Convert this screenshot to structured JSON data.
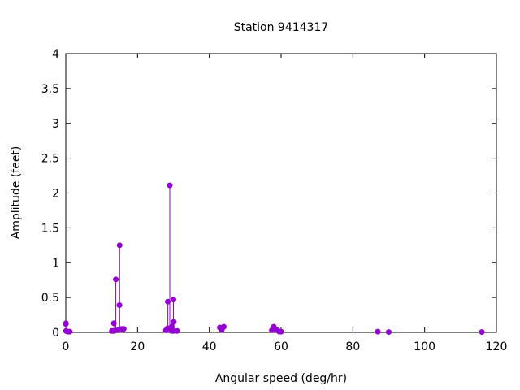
{
  "chart_data": {
    "type": "scatter",
    "style": "impulses-with-points",
    "title": "Station 9414317",
    "xlabel": "Angular speed (deg/hr)",
    "ylabel": "Amplitude (feet)",
    "xlim": [
      0,
      120
    ],
    "ylim": [
      0,
      4
    ],
    "xticks": [
      "0",
      "20",
      "40",
      "60",
      "80",
      "100",
      "120"
    ],
    "yticks": [
      "0",
      "0.5",
      "1",
      "1.5",
      "2",
      "2.5",
      "3",
      "3.5",
      "4"
    ],
    "grid": false,
    "legend": "none",
    "color": "#9400d3",
    "points": [
      {
        "x": 0.0,
        "y": 0.12
      },
      {
        "x": 0.04,
        "y": 0.13
      },
      {
        "x": 0.08,
        "y": 0.02
      },
      {
        "x": 0.54,
        "y": 0.01
      },
      {
        "x": 1.1,
        "y": 0.01
      },
      {
        "x": 12.85,
        "y": 0.02
      },
      {
        "x": 13.4,
        "y": 0.13
      },
      {
        "x": 13.47,
        "y": 0.02
      },
      {
        "x": 13.94,
        "y": 0.76
      },
      {
        "x": 14.5,
        "y": 0.03
      },
      {
        "x": 14.96,
        "y": 0.39
      },
      {
        "x": 15.0,
        "y": 1.25
      },
      {
        "x": 15.59,
        "y": 0.05
      },
      {
        "x": 16.14,
        "y": 0.05
      },
      {
        "x": 27.9,
        "y": 0.03
      },
      {
        "x": 28.4,
        "y": 0.06
      },
      {
        "x": 28.44,
        "y": 0.44
      },
      {
        "x": 28.98,
        "y": 2.11
      },
      {
        "x": 29.46,
        "y": 0.02
      },
      {
        "x": 29.53,
        "y": 0.08
      },
      {
        "x": 29.96,
        "y": 0.02
      },
      {
        "x": 30.0,
        "y": 0.47
      },
      {
        "x": 30.08,
        "y": 0.15
      },
      {
        "x": 31.02,
        "y": 0.02
      },
      {
        "x": 42.93,
        "y": 0.07
      },
      {
        "x": 43.48,
        "y": 0.04
      },
      {
        "x": 44.03,
        "y": 0.08
      },
      {
        "x": 57.42,
        "y": 0.03
      },
      {
        "x": 57.97,
        "y": 0.08
      },
      {
        "x": 58.98,
        "y": 0.03
      },
      {
        "x": 59.5,
        "y": 0.01
      },
      {
        "x": 60.0,
        "y": 0.01
      },
      {
        "x": 86.95,
        "y": 0.01
      },
      {
        "x": 90.0,
        "y": 0.005
      },
      {
        "x": 115.94,
        "y": 0.005
      }
    ]
  }
}
